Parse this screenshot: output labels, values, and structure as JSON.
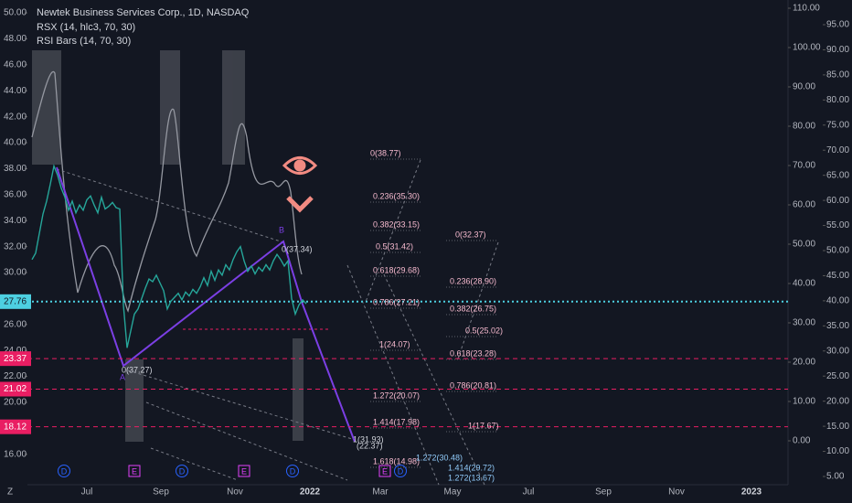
{
  "header": {
    "title": "Newtek Business Services Corp., 1D, NASDAQ",
    "indicator1": "RSX (14, hlc3, 70, 30)",
    "indicator2": "RSI Bars (14, 70, 30)",
    "corner_label": "Z"
  },
  "chart_data": {
    "type": "line",
    "color": "#26a69a",
    "values": [
      31,
      31.5,
      33,
      34.5,
      35.5,
      36.8,
      38.2,
      37.5,
      36.5,
      35.8,
      34.8,
      35.5,
      34.6,
      35.2,
      34.8,
      35.6,
      35.9,
      35.2,
      34.6,
      35.8,
      34.9,
      35.1,
      35.4,
      35.0,
      34.9,
      27.5,
      24.2,
      25.5,
      26.8,
      27.2,
      28.0,
      28.8,
      29.5,
      29.3,
      29.8,
      29.2,
      28.6,
      27.2,
      27.8,
      28.1,
      28.4,
      27.9,
      28.5,
      28.2,
      28.7,
      28.4,
      28.9,
      29.6,
      29.0,
      30.1,
      29.4,
      30.2,
      29.8,
      30.6,
      30.2,
      31.0,
      31.6,
      32.0,
      30.9,
      30.1,
      30.5,
      29.9,
      30.4,
      30.1,
      30.6,
      30.2,
      30.9,
      31.4,
      31.0,
      30.5,
      30.9,
      28.0,
      26.8,
      27.5,
      27.9,
      27.6
    ],
    "ylim": [
      13.66,
      50.99
    ],
    "yticks": [
      {
        "value": 50,
        "label": "50.00"
      },
      {
        "value": 48,
        "label": "48.00"
      },
      {
        "value": 46,
        "label": "46.00"
      },
      {
        "value": 44,
        "label": "44.00"
      },
      {
        "value": 42,
        "label": "42.00"
      },
      {
        "value": 40,
        "label": "40.00"
      },
      {
        "value": 38,
        "label": "38.00"
      },
      {
        "value": 36,
        "label": "36.00"
      },
      {
        "value": 34,
        "label": "34.00"
      },
      {
        "value": 32,
        "label": "32.00"
      },
      {
        "value": 30,
        "label": "30.00"
      },
      {
        "value": 26,
        "label": "26.00"
      },
      {
        "value": 24,
        "label": "24.00"
      },
      {
        "value": 22,
        "label": "22.00"
      },
      {
        "value": 20,
        "label": "20.00"
      },
      {
        "value": 16,
        "label": "16.00"
      }
    ],
    "y2lim": [
      -11.16,
      112.09
    ],
    "y2ticks": [
      {
        "value": 110,
        "label": "110.00"
      },
      {
        "value": 100,
        "label": "100.00"
      },
      {
        "value": 90,
        "label": "90.00"
      },
      {
        "value": 80,
        "label": "80.00"
      },
      {
        "value": 70,
        "label": "70.00"
      },
      {
        "value": 60,
        "label": "60.00"
      },
      {
        "value": 50,
        "label": "50.00"
      },
      {
        "value": 40,
        "label": "40.00"
      },
      {
        "value": 30,
        "label": "30.00"
      },
      {
        "value": 20,
        "label": "20.00"
      },
      {
        "value": 10,
        "label": "10.00"
      },
      {
        "value": 0,
        "label": "0.00"
      }
    ],
    "y3lim": [
      3.36,
      99.92
    ],
    "y3ticks": [
      {
        "value": 95,
        "label": "95.00"
      },
      {
        "value": 90,
        "label": "90.00"
      },
      {
        "value": 85,
        "label": "85.00"
      },
      {
        "value": 80,
        "label": "80.00"
      },
      {
        "value": 75,
        "label": "75.00"
      },
      {
        "value": 70,
        "label": "70.00"
      },
      {
        "value": 65,
        "label": "65.00"
      },
      {
        "value": 60,
        "label": "60.00"
      },
      {
        "value": 55,
        "label": "55.00"
      },
      {
        "value": 50,
        "label": "50.00"
      },
      {
        "value": 45,
        "label": "45.00"
      },
      {
        "value": 40,
        "label": "40.00"
      },
      {
        "value": 35,
        "label": "35.00"
      },
      {
        "value": 30,
        "label": "30.00"
      },
      {
        "value": 25,
        "label": "25.00"
      },
      {
        "value": 20,
        "label": "20.00"
      },
      {
        "value": 15,
        "label": "15.00"
      },
      {
        "value": 10,
        "label": "10.00"
      },
      {
        "value": 5,
        "label": "5.00"
      }
    ],
    "levels": [
      {
        "value": 27.76,
        "color": "#4dd0e1"
      },
      {
        "value": 23.37,
        "color": "#e91e63"
      },
      {
        "value": 21.02,
        "color": "#e91e63"
      },
      {
        "value": 18.12,
        "color": "#e91e63"
      }
    ],
    "time_labels": [
      "Jul",
      "Sep",
      "Nov",
      "2022",
      "Mar",
      "May",
      "Jul",
      "Sep",
      "Nov",
      "2023"
    ],
    "events": [
      "D",
      "E",
      "D",
      "E",
      "D",
      "E",
      "D"
    ],
    "annotations": [
      "0(38.77)",
      "0.236(35.30)",
      "0.382(33.15)",
      "0.5(31.42)",
      "0.618(29.68)",
      "0.786(27.21)",
      "1(24.07)",
      "1.272(20.07)",
      "1.414(17.98)",
      "1.618(14.98)",
      "0(32.37)",
      "0.236(28.90)",
      "0.382(26.75)",
      "0.5(25.02)",
      "0.618(23.28)",
      "0.786(20.81)",
      "1(17.67)",
      "1.272(30.48)",
      "1.414(29.72)",
      "1.272(13.67)",
      "0(37.34)",
      "0(37.27)",
      "1(31.93)",
      "(22.37)",
      "A",
      "B"
    ]
  }
}
